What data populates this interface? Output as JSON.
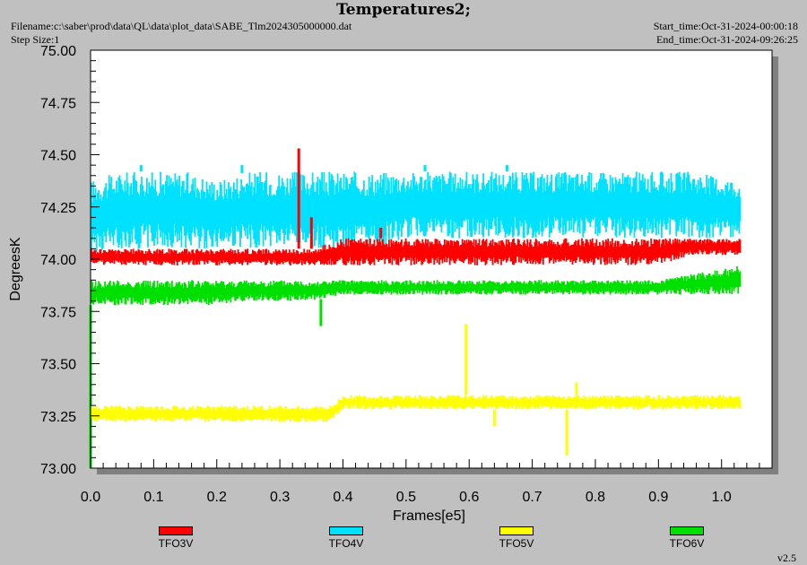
{
  "header": {
    "title": "Temperatures2;",
    "filename": "Filename:c:\\saber\\prod\\data\\QL\\data\\plot_data\\SABE_Tlm2024305000000.dat",
    "step_size": "Step Size:1",
    "start_time": "Start_time:Oct-31-2024-00:00:18",
    "end_time": "End_time:Oct-31-2024-09:26:25"
  },
  "version": "v2.5",
  "colors": {
    "background": "#c0c0c0",
    "plot_area": "#ffffff",
    "shadow": "#808080"
  },
  "chart_data": {
    "type": "line",
    "xlabel": "Frames[e5]",
    "ylabel": "DegreesK",
    "xlim": [
      0.0,
      1.08
    ],
    "ylim": [
      73.0,
      75.0
    ],
    "x_ticks": [
      "0.0",
      "0.1",
      "0.2",
      "0.3",
      "0.4",
      "0.5",
      "0.6",
      "0.7",
      "0.8",
      "0.9",
      "1.0"
    ],
    "y_ticks": [
      "73.00",
      "73.25",
      "73.50",
      "73.75",
      "74.00",
      "74.25",
      "74.50",
      "74.75",
      "75.00"
    ],
    "grid": false,
    "legend_position": "bottom",
    "series": [
      {
        "name": "TFO4V",
        "color": "#00e0ff",
        "x": [
          0.0,
          0.05,
          0.1,
          0.15,
          0.2,
          0.25,
          0.3,
          0.35,
          0.4,
          0.45,
          0.5,
          0.55,
          0.6,
          0.65,
          0.7,
          0.75,
          0.8,
          0.85,
          0.9,
          0.95,
          1.03
        ],
        "low": [
          74.02,
          74.05,
          74.05,
          74.05,
          74.05,
          74.05,
          74.05,
          74.05,
          74.05,
          74.05,
          74.1,
          74.1,
          74.1,
          74.1,
          74.1,
          74.1,
          74.1,
          74.1,
          74.1,
          74.1,
          74.1
        ],
        "high": [
          74.38,
          74.42,
          74.42,
          74.42,
          74.38,
          74.42,
          74.42,
          74.42,
          74.42,
          74.42,
          74.42,
          74.42,
          74.42,
          74.42,
          74.42,
          74.42,
          74.42,
          74.42,
          74.42,
          74.42,
          74.38
        ],
        "spike_x": [
          0.08,
          0.24,
          0.53,
          0.66
        ],
        "spike_y": [
          74.45,
          74.45,
          74.45,
          74.45
        ]
      },
      {
        "name": "TFO3V",
        "color": "#ff0000",
        "x": [
          0.0,
          0.05,
          0.1,
          0.15,
          0.2,
          0.25,
          0.3,
          0.35,
          0.4,
          0.45,
          0.5,
          0.55,
          0.6,
          0.65,
          0.7,
          0.75,
          0.8,
          0.85,
          0.9,
          0.95,
          1.03
        ],
        "low": [
          73.97,
          73.97,
          73.97,
          73.97,
          73.97,
          73.97,
          73.97,
          73.97,
          73.97,
          73.97,
          73.97,
          73.97,
          73.97,
          73.97,
          73.97,
          73.97,
          73.97,
          73.97,
          73.97,
          74.02,
          74.02
        ],
        "high": [
          74.05,
          74.05,
          74.05,
          74.05,
          74.05,
          74.05,
          74.05,
          74.05,
          74.1,
          74.1,
          74.1,
          74.1,
          74.1,
          74.1,
          74.1,
          74.1,
          74.1,
          74.1,
          74.1,
          74.1,
          74.1
        ],
        "spike_x": [
          0.33,
          0.35,
          0.46
        ],
        "spike_y": [
          74.53,
          74.2,
          74.15
        ]
      },
      {
        "name": "TFO6V",
        "color": "#00e000",
        "x": [
          0.0,
          0.05,
          0.1,
          0.15,
          0.2,
          0.25,
          0.3,
          0.35,
          0.4,
          0.45,
          0.5,
          0.55,
          0.6,
          0.65,
          0.7,
          0.75,
          0.8,
          0.85,
          0.9,
          0.95,
          1.03
        ],
        "low": [
          73.78,
          73.78,
          73.78,
          73.78,
          73.78,
          73.8,
          73.8,
          73.8,
          73.83,
          73.83,
          73.83,
          73.83,
          73.83,
          73.83,
          73.83,
          73.83,
          73.83,
          73.83,
          73.83,
          73.83,
          73.83
        ],
        "high": [
          73.9,
          73.9,
          73.9,
          73.9,
          73.9,
          73.9,
          73.9,
          73.9,
          73.9,
          73.9,
          73.9,
          73.9,
          73.9,
          73.9,
          73.9,
          73.9,
          73.9,
          73.9,
          73.9,
          73.93,
          73.97
        ],
        "spike_x": [
          0.0,
          0.365
        ],
        "spike_y": [
          73.0,
          73.68
        ]
      },
      {
        "name": "TFO5V",
        "color": "#ffff00",
        "x": [
          0.0,
          0.05,
          0.1,
          0.15,
          0.2,
          0.25,
          0.3,
          0.35,
          0.38,
          0.4,
          0.45,
          0.5,
          0.55,
          0.6,
          0.65,
          0.7,
          0.75,
          0.8,
          0.85,
          0.9,
          0.95,
          1.03
        ],
        "low": [
          73.22,
          73.22,
          73.22,
          73.22,
          73.22,
          73.22,
          73.22,
          73.22,
          73.22,
          73.28,
          73.28,
          73.28,
          73.28,
          73.28,
          73.28,
          73.28,
          73.28,
          73.28,
          73.28,
          73.28,
          73.28,
          73.28
        ],
        "high": [
          73.3,
          73.3,
          73.3,
          73.3,
          73.3,
          73.3,
          73.3,
          73.3,
          73.3,
          73.35,
          73.35,
          73.35,
          73.35,
          73.35,
          73.35,
          73.35,
          73.35,
          73.35,
          73.35,
          73.35,
          73.35,
          73.35
        ],
        "spike_x": [
          0.595,
          0.755,
          0.77,
          0.64
        ],
        "spike_y": [
          73.69,
          73.06,
          73.41,
          73.2
        ]
      }
    ]
  }
}
